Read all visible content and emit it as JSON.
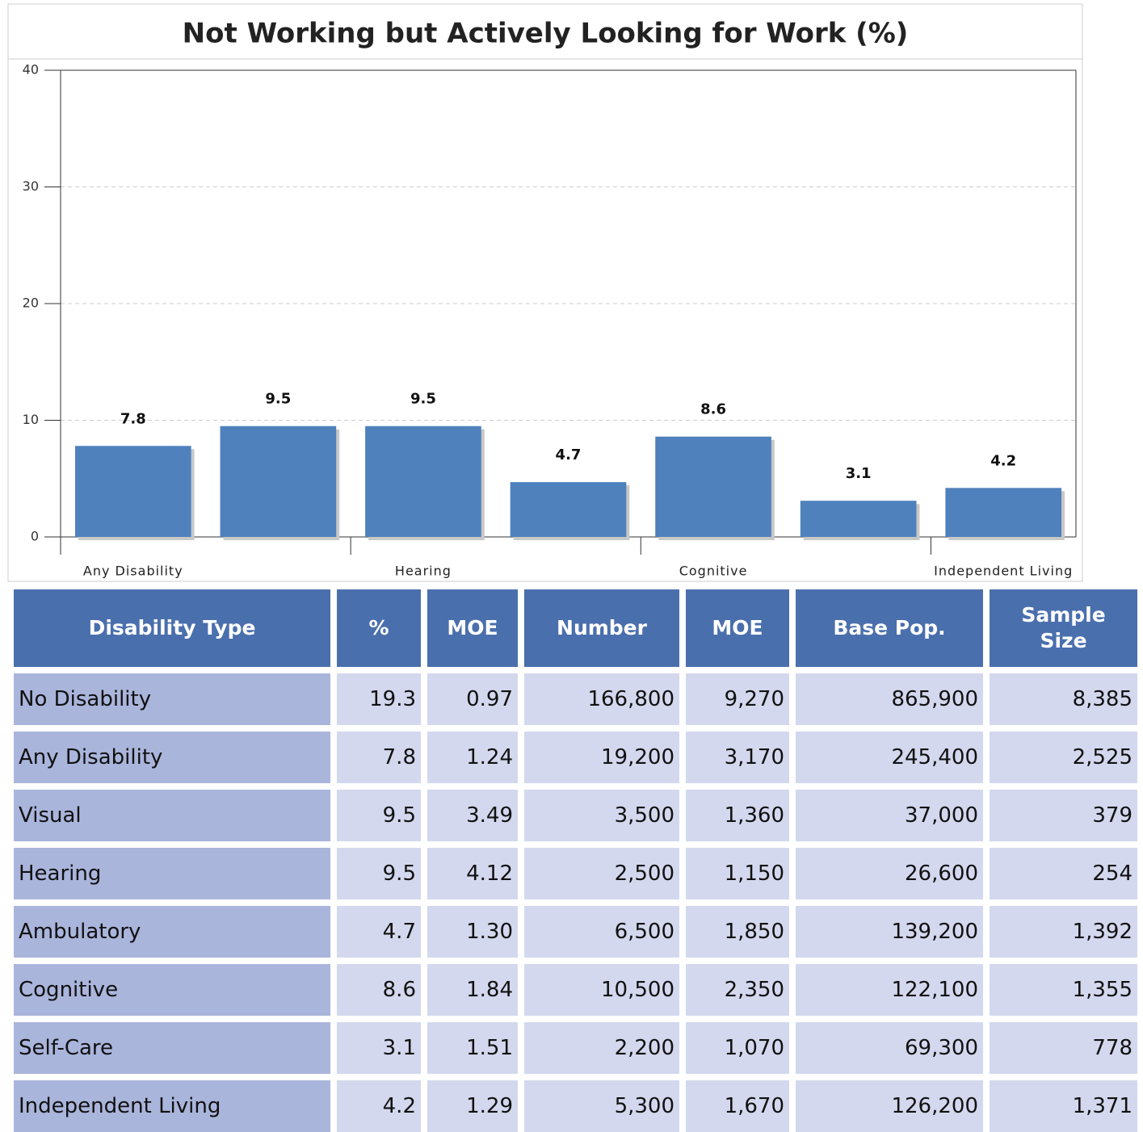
{
  "chart_data": {
    "type": "bar",
    "title": "Not Working but Actively Looking for Work (%)",
    "categories": [
      "Any Disability",
      null,
      "Hearing",
      null,
      "Cognitive",
      null,
      "Independent Living"
    ],
    "values": [
      7.8,
      9.5,
      9.5,
      4.7,
      8.6,
      3.1,
      4.2
    ],
    "color": "#4f81bd",
    "ylim": [
      0,
      40
    ],
    "yticks": [
      0,
      10,
      20,
      30,
      40
    ],
    "grid": true
  },
  "table": {
    "header": [
      "Disability Type",
      "%",
      "MOE",
      "Number",
      "MOE",
      "Base Pop.",
      "Sample Size"
    ],
    "rows": [
      [
        "No Disability",
        "19.3",
        "0.97",
        "166,800",
        "9,270",
        "865,900",
        "8,385"
      ],
      [
        "Any Disability",
        "7.8",
        "1.24",
        "19,200",
        "3,170",
        "245,400",
        "2,525"
      ],
      [
        "Visual",
        "9.5",
        "3.49",
        "3,500",
        "1,360",
        "37,000",
        "379"
      ],
      [
        "Hearing",
        "9.5",
        "4.12",
        "2,500",
        "1,150",
        "26,600",
        "254"
      ],
      [
        "Ambulatory",
        "4.7",
        "1.30",
        "6,500",
        "1,850",
        "139,200",
        "1,392"
      ],
      [
        "Cognitive",
        "8.6",
        "1.84",
        "10,500",
        "2,350",
        "122,100",
        "1,355"
      ],
      [
        "Self-Care",
        "3.1",
        "1.51",
        "2,200",
        "1,070",
        "69,300",
        "778"
      ],
      [
        "Independent Living",
        "4.2",
        "1.29",
        "5,300",
        "1,670",
        "126,200",
        "1,371"
      ]
    ]
  }
}
